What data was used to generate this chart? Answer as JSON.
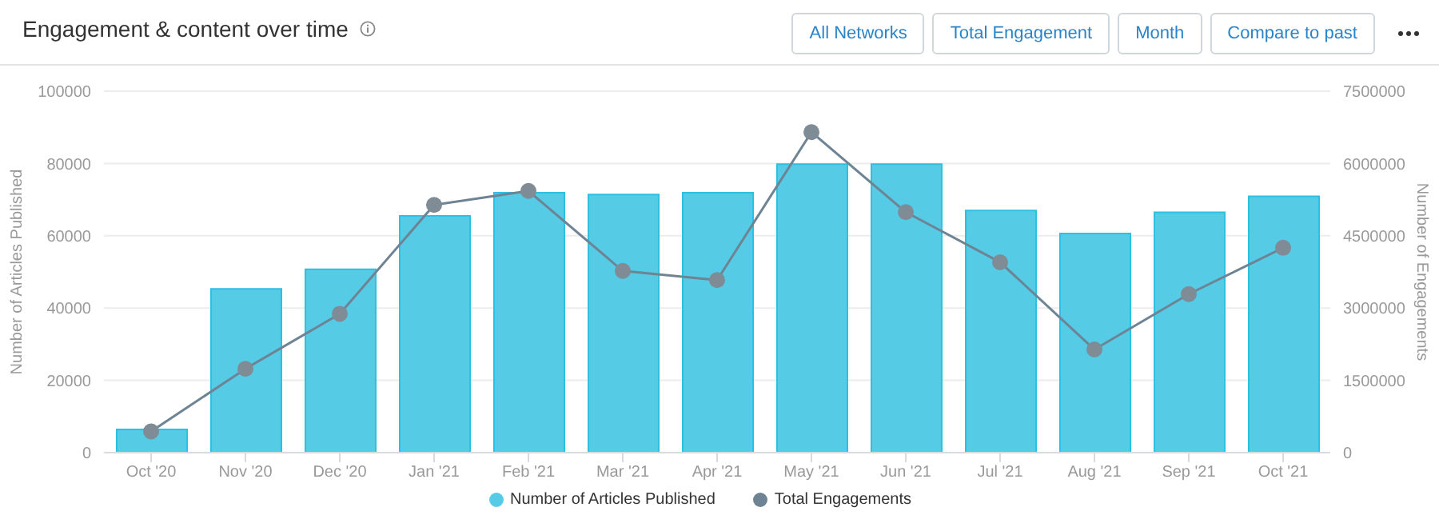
{
  "chart_data": {
    "type": "bar",
    "title": "Engagement & content over time",
    "ylabel": "Number of Articles Published",
    "y2label": "Number of Engagements",
    "annotations": [
      "All Networks",
      "Total Engagement",
      "Month",
      "Compare to past"
    ],
    "categories": [
      "Oct '20",
      "Nov '20",
      "Dec '20",
      "Jan '21",
      "Feb '21",
      "Mar '21",
      "Apr '21",
      "May '21",
      "Jun '21",
      "Jul '21",
      "Aug '21",
      "Sep '21",
      "Oct '21"
    ],
    "series": [
      {
        "name": "Number of Articles Published",
        "color": "#55cbe6",
        "values": [
          6400,
          45300,
          50700,
          65500,
          71900,
          71400,
          71900,
          79800,
          79800,
          67000,
          60600,
          66500,
          70900
        ]
      },
      {
        "name": "Total Engagements",
        "type": "line",
        "axis": "y2",
        "color": "#6e8494",
        "values": [
          440000,
          1740000,
          2880000,
          5140000,
          5430000,
          3770000,
          3580000,
          6650000,
          4990000,
          3950000,
          2140000,
          3290000,
          4250000
        ]
      }
    ],
    "ylim": [
      0,
      100000
    ],
    "yticks": [
      0,
      20000,
      40000,
      60000,
      80000,
      100000
    ],
    "y2lim": [
      0,
      7500000
    ],
    "y2ticks": [
      0,
      1500000,
      3000000,
      4500000,
      6000000,
      7500000
    ],
    "grid": "y",
    "legend": "bottom",
    "marker": "circle",
    "line_style": "solid"
  }
}
